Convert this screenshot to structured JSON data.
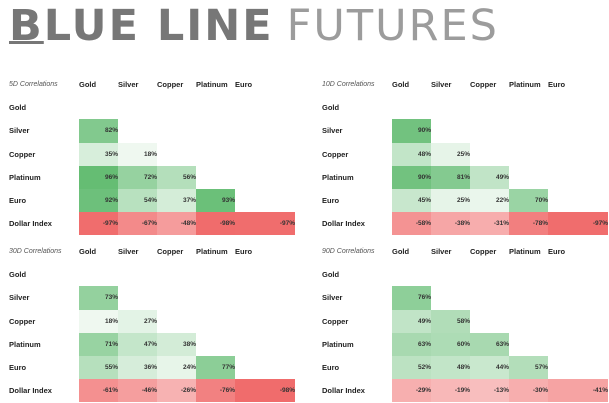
{
  "header": {
    "logo_first": "B",
    "logo_rest": "LUE LINE",
    "logo_second": "FUTURES"
  },
  "colors": {
    "positive": "#5cb96b",
    "negative": "#f06a6a",
    "neutral": "#ffffff",
    "text": "#222222"
  },
  "chart_data": [
    {
      "type": "heatmap",
      "title": "5D Correlations",
      "columns": [
        "Gold",
        "Silver",
        "Copper",
        "Platinum",
        "Euro"
      ],
      "rows": [
        "Gold",
        "Silver",
        "Copper",
        "Platinum",
        "Euro",
        "Dollar Index"
      ],
      "values": [
        [],
        [
          82
        ],
        [
          35,
          18
        ],
        [
          96,
          72,
          56
        ],
        [
          92,
          54,
          37,
          93
        ],
        [
          -97,
          -67,
          -48,
          -98,
          -97
        ]
      ],
      "labels": [
        [],
        [
          "82%"
        ],
        [
          "35%",
          "18%"
        ],
        [
          "96%",
          "72%",
          "56%"
        ],
        [
          "92%",
          "54%",
          "37%",
          "93%"
        ],
        [
          "-97%",
          "-67%",
          "-48%",
          "-98%",
          "-97%"
        ]
      ]
    },
    {
      "type": "heatmap",
      "title": "10D Correlations",
      "columns": [
        "Gold",
        "Silver",
        "Copper",
        "Platinum",
        "Euro"
      ],
      "rows": [
        "Gold",
        "Silver",
        "Copper",
        "Platinum",
        "Euro",
        "Dollar Index"
      ],
      "values": [
        [],
        [
          90
        ],
        [
          48,
          25
        ],
        [
          90,
          81,
          49
        ],
        [
          45,
          25,
          22,
          70
        ],
        [
          -58,
          -38,
          -31,
          -78,
          -97
        ]
      ],
      "labels": [
        [],
        [
          "90%"
        ],
        [
          "48%",
          "25%"
        ],
        [
          "90%",
          "81%",
          "49%"
        ],
        [
          "45%",
          "25%",
          "22%",
          "70%"
        ],
        [
          "-58%",
          "-38%",
          "-31%",
          "-78%",
          "-97%"
        ]
      ]
    },
    {
      "type": "heatmap",
      "title": "30D Correlations",
      "columns": [
        "Gold",
        "Silver",
        "Copper",
        "Platinum",
        "Euro"
      ],
      "rows": [
        "Gold",
        "Silver",
        "Copper",
        "Platinum",
        "Euro",
        "Dollar Index"
      ],
      "values": [
        [],
        [
          73
        ],
        [
          18,
          27
        ],
        [
          71,
          47,
          38
        ],
        [
          55,
          36,
          24,
          77
        ],
        [
          -61,
          -46,
          -26,
          -76,
          -98
        ]
      ],
      "labels": [
        [],
        [
          "73%"
        ],
        [
          "18%",
          "27%"
        ],
        [
          "71%",
          "47%",
          "38%"
        ],
        [
          "55%",
          "36%",
          "24%",
          "77%"
        ],
        [
          "-61%",
          "-46%",
          "-26%",
          "-76%",
          "-98%"
        ]
      ]
    },
    {
      "type": "heatmap",
      "title": "90D Correlations",
      "columns": [
        "Gold",
        "Silver",
        "Copper",
        "Platinum",
        "Euro"
      ],
      "rows": [
        "Gold",
        "Silver",
        "Copper",
        "Platinum",
        "Euro",
        "Dollar Index"
      ],
      "values": [
        [],
        [
          76
        ],
        [
          49,
          58
        ],
        [
          63,
          60,
          63
        ],
        [
          52,
          48,
          44,
          57
        ],
        [
          -29,
          -19,
          -13,
          -30,
          -41
        ]
      ],
      "labels": [
        [],
        [
          "76%"
        ],
        [
          "49%",
          "58%"
        ],
        [
          "63%",
          "60%",
          "63%"
        ],
        [
          "52%",
          "48%",
          "44%",
          "57%"
        ],
        [
          "-29%",
          "-19%",
          "-13%",
          "-30%",
          "-41%"
        ]
      ]
    }
  ]
}
